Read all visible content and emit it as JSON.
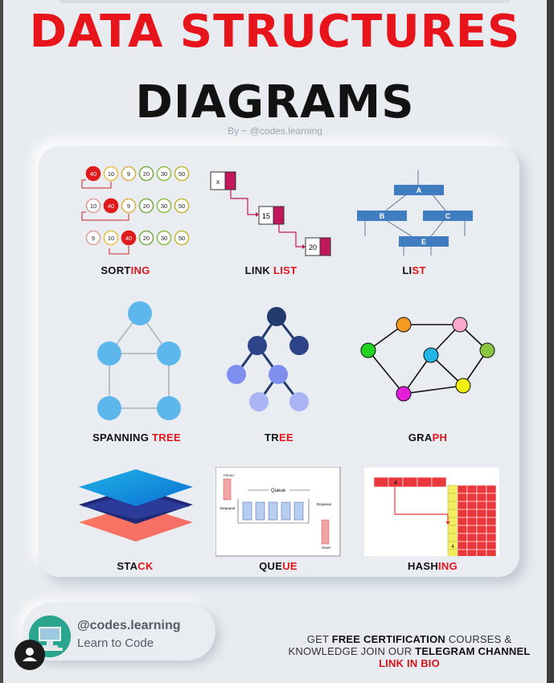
{
  "title_line1": "DATA STRUCTURES",
  "title_line2": "DIAGRAMS",
  "byline": "By ~ @codes.learning",
  "sections": {
    "sorting": {
      "label_a": "SORT",
      "label_b": "ING",
      "rows": [
        [
          "40",
          "10",
          "9",
          "20",
          "30",
          "50"
        ],
        [
          "10",
          "40",
          "9",
          "20",
          "30",
          "50"
        ],
        [
          "9",
          "10",
          "40",
          "20",
          "30",
          "50"
        ]
      ]
    },
    "linklist": {
      "label_a": "LINK ",
      "label_b": "LIST",
      "nodes": [
        "x",
        "15",
        "20"
      ]
    },
    "list": {
      "label_a": "LI",
      "label_b": "ST",
      "nodes": [
        "A",
        "B",
        "C",
        "E"
      ]
    },
    "spanning": {
      "label_a": "SPANNING ",
      "label_b": "TREE"
    },
    "tree": {
      "label_a": "TR",
      "label_b": "EE"
    },
    "graph": {
      "label_a": "GRA",
      "label_b": "PH"
    },
    "stack": {
      "label_a": "STA",
      "label_b": "CK"
    },
    "queue": {
      "label_a": "QUE",
      "label_b": "UE",
      "title": "Queue",
      "front": "FRONT",
      "rear": "REAR",
      "dequeue": "Dequeue",
      "enqueue": "Enqueue"
    },
    "hashing": {
      "label_a": "HASH",
      "label_b": "ING",
      "key_cell": "4",
      "bucket_cell": "4"
    }
  },
  "footer": {
    "handle": "@codes.learning",
    "tagline": "Learn to Code",
    "cta_1": "GET ",
    "cta_2": "FREE CERTIFICATION",
    "cta_3": " COURSES &",
    "cta_4": "KNOWLEDGE JOIN OUR ",
    "cta_5": "TELEGRAM CHANNEL",
    "cta_6": "LINK IN BIO"
  },
  "colors": {
    "title_red": "#e8141b",
    "accent_red": "#e0151c",
    "crimson": "#c2185b",
    "sky": "#5db7ec",
    "navy": "#233a6e",
    "periwinkle": "#8f9ff0"
  }
}
